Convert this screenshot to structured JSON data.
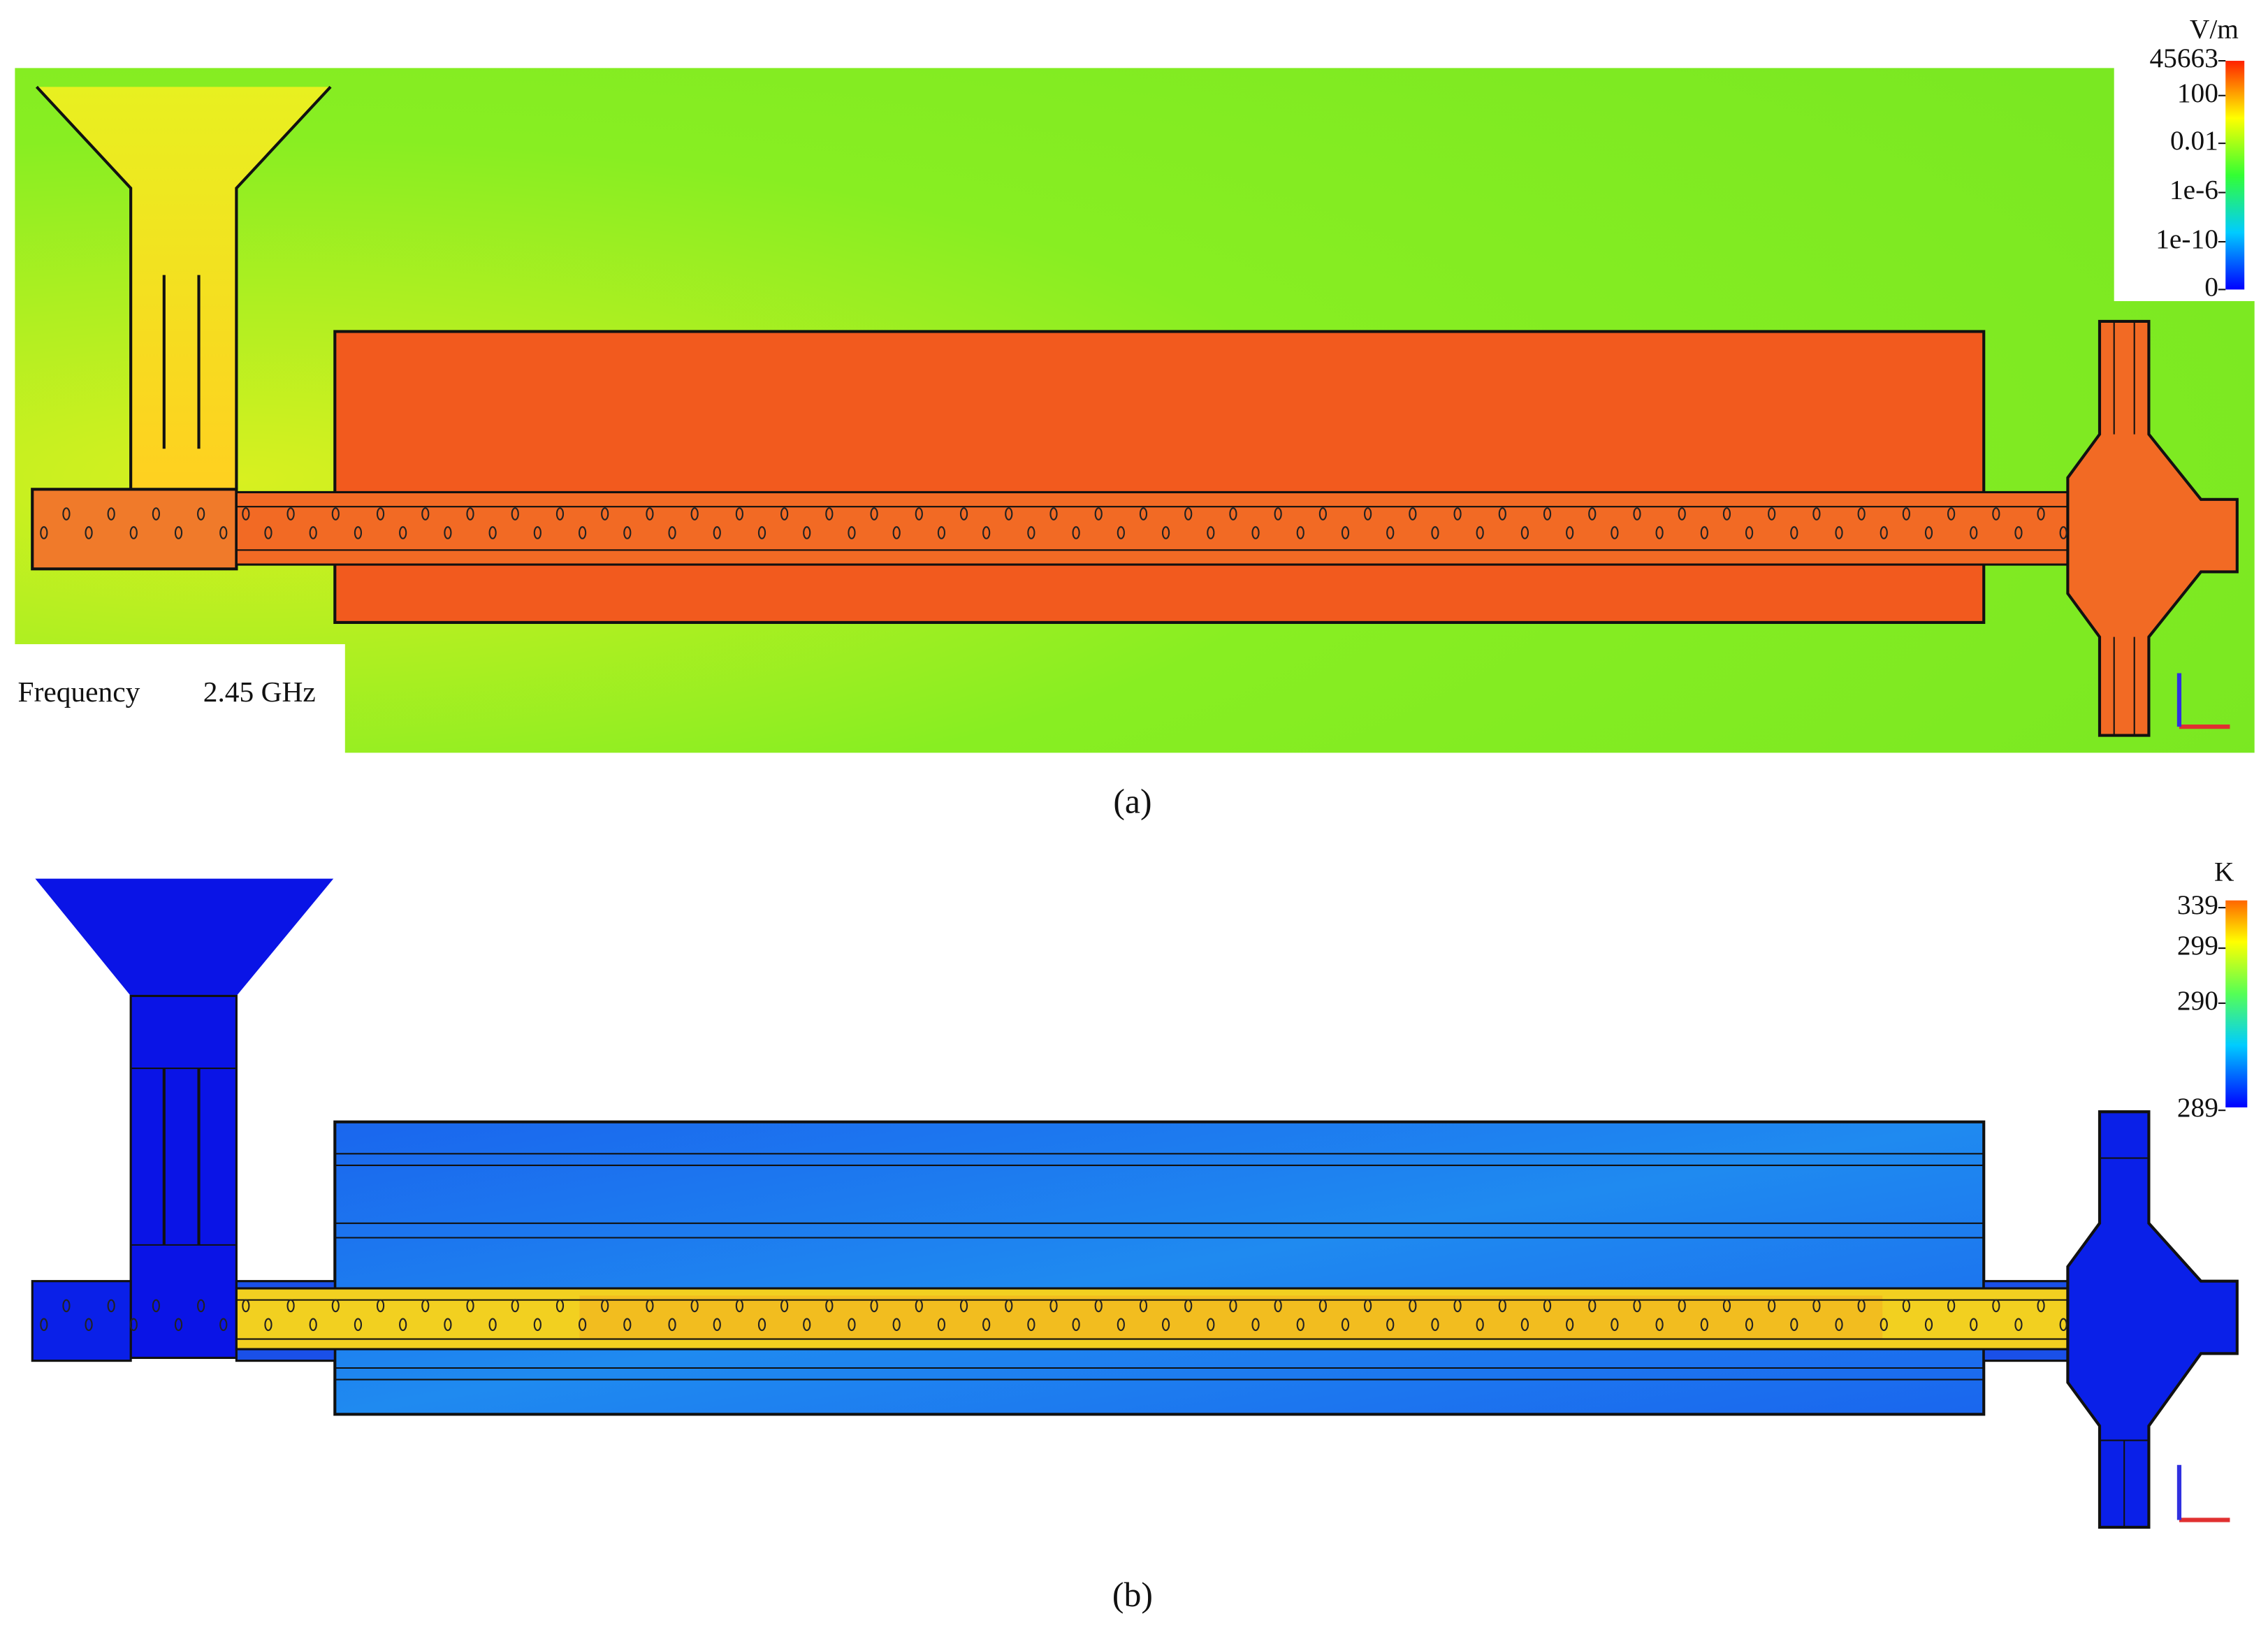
{
  "panel_a": {
    "colorbar": {
      "unit": "V/m",
      "labels": [
        "45663",
        "100",
        "0.01",
        "1e-6",
        "1e-10",
        "0"
      ]
    },
    "frequency_label": "Frequency",
    "frequency_value": "2.45 GHz",
    "caption": "(a)"
  },
  "panel_b": {
    "colorbar": {
      "unit": "K",
      "labels": [
        "339",
        "299",
        "290",
        "289"
      ]
    },
    "caption": "(b)"
  }
}
